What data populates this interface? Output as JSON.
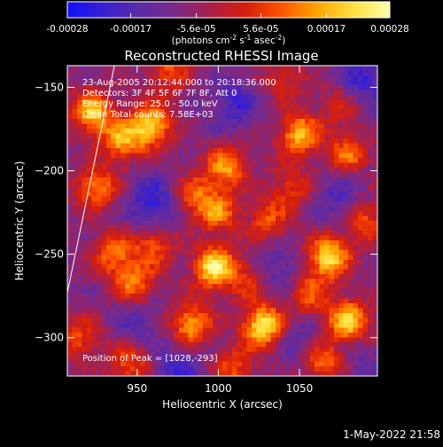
{
  "colorbar": {
    "tick_labels": [
      "-0.00028",
      "-0.00017",
      "-5.6e-05",
      "5.6e-05",
      "0.00017",
      "0.00028"
    ],
    "tick_values": [
      -0.00028,
      -0.00017,
      -5.6e-05,
      5.6e-05,
      0.00017,
      0.00028
    ],
    "range": [
      -0.00028,
      0.00028
    ],
    "unit_main": "(photons cm",
    "unit_sup1": "-2",
    "unit_mid1": " s",
    "unit_sup2": "-1",
    "unit_mid2": " asec",
    "unit_sup3": "-2",
    "unit_close": ")",
    "colors": [
      "#1010ff",
      "#3a1fd0",
      "#5a2aa6",
      "#7a2a8a",
      "#a8204a",
      "#d81e0a",
      "#ff5500",
      "#ffa800",
      "#ffe040",
      "#ffffb0"
    ]
  },
  "chart_data": {
    "type": "heatmap",
    "title": "Reconstructed RHESSI Image",
    "xlabel": "Heliocentric X (arcsec)",
    "ylabel": "Heliocentric Y (arcsec)",
    "xlim": [
      907,
      1098
    ],
    "ylim": [
      -323,
      -137
    ],
    "x_ticks": [
      950,
      1000,
      1050
    ],
    "x_tick_labels": [
      "950",
      "1000",
      "1050"
    ],
    "y_ticks": [
      -150,
      -200,
      -250,
      -300
    ],
    "y_tick_labels": [
      "-150",
      "-200",
      "-250",
      "-300"
    ],
    "annotations": [
      "23-Aug-2005 20:12:44.000 to 20:18:36.000",
      "Detectors: 3F 4F 5F 6F 7F 8F, Att 0",
      "Energy Range: 25.0 - 50.0 keV",
      "Clean    Total counts: 7.58E+03"
    ],
    "peak_label": "Position of Peak = [1028,-293]",
    "peak": [
      1028,
      -293
    ],
    "limb_line": [
      [
        907,
        -273
      ],
      [
        936,
        -137
      ]
    ],
    "blobs": [
      {
        "x": 1028,
        "y": -293,
        "a": 1.0
      },
      {
        "x": 998,
        "y": -258,
        "a": 0.95
      },
      {
        "x": 983,
        "y": -292,
        "a": 0.7
      },
      {
        "x": 1068,
        "y": -252,
        "a": 0.9
      },
      {
        "x": 1080,
        "y": -290,
        "a": 0.85
      },
      {
        "x": 1065,
        "y": -315,
        "a": 0.6
      },
      {
        "x": 958,
        "y": -173,
        "a": 0.85
      },
      {
        "x": 922,
        "y": -165,
        "a": 0.8
      },
      {
        "x": 940,
        "y": -182,
        "a": 0.65
      },
      {
        "x": 1050,
        "y": -178,
        "a": 0.75
      },
      {
        "x": 1080,
        "y": -190,
        "a": 0.55
      },
      {
        "x": 1005,
        "y": -198,
        "a": 0.65
      },
      {
        "x": 985,
        "y": -215,
        "a": 0.5
      },
      {
        "x": 1000,
        "y": -225,
        "a": 0.55
      },
      {
        "x": 925,
        "y": -210,
        "a": 0.6
      },
      {
        "x": 935,
        "y": -250,
        "a": 0.55
      },
      {
        "x": 948,
        "y": -268,
        "a": 0.6
      },
      {
        "x": 960,
        "y": -245,
        "a": 0.5
      },
      {
        "x": 915,
        "y": -300,
        "a": 0.45
      },
      {
        "x": 1030,
        "y": -230,
        "a": 0.45
      },
      {
        "x": 1045,
        "y": -210,
        "a": 0.4
      },
      {
        "x": 945,
        "y": -315,
        "a": 0.5
      },
      {
        "x": 1010,
        "y": -318,
        "a": 0.45
      },
      {
        "x": 1090,
        "y": -230,
        "a": 0.5
      },
      {
        "x": 1040,
        "y": -145,
        "a": 0.35
      },
      {
        "x": 1075,
        "y": -160,
        "a": 0.3
      },
      {
        "x": 970,
        "y": -140,
        "a": 0.45
      },
      {
        "x": 1020,
        "y": -265,
        "a": 0.4
      },
      {
        "x": 1055,
        "y": -275,
        "a": 0.5
      }
    ],
    "dips": [
      {
        "x": 960,
        "y": -220,
        "a": 0.9
      },
      {
        "x": 975,
        "y": -320,
        "a": 0.7
      },
      {
        "x": 1075,
        "y": -215,
        "a": 0.6
      },
      {
        "x": 1035,
        "y": -260,
        "a": 0.6
      },
      {
        "x": 1010,
        "y": -160,
        "a": 0.7
      },
      {
        "x": 1090,
        "y": -145,
        "a": 0.8
      },
      {
        "x": 950,
        "y": -290,
        "a": 0.5
      },
      {
        "x": 1048,
        "y": -300,
        "a": 0.5
      },
      {
        "x": 1085,
        "y": -315,
        "a": 0.4
      }
    ]
  },
  "footer": {
    "timestamp": "1-May-2022 21:58"
  }
}
